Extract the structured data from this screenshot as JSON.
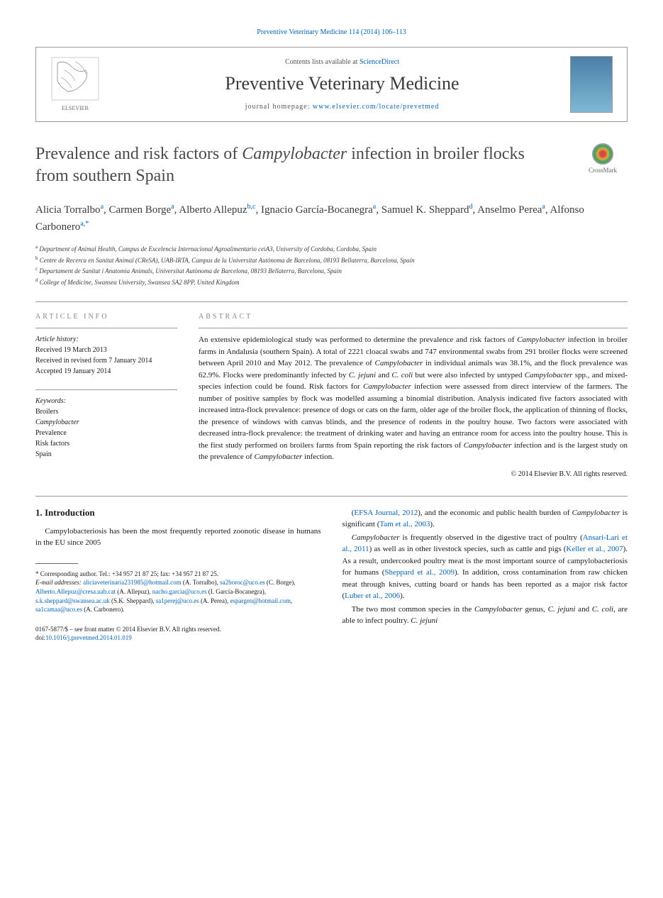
{
  "journal_ref": "Preventive Veterinary Medicine 114 (2014) 106–113",
  "header": {
    "contents_prefix": "Contents lists available at ",
    "contents_link": "ScienceDirect",
    "journal_name": "Preventive Veterinary Medicine",
    "homepage_prefix": "journal homepage: ",
    "homepage_url": "www.elsevier.com/locate/prevetmed",
    "elsevier_label": "ELSEVIER"
  },
  "title_parts": {
    "pre": "Prevalence and risk factors of ",
    "italic": "Campylobacter",
    "post": " infection in broiler flocks from southern Spain"
  },
  "crossmark_label": "CrossMark",
  "authors_html": "Alicia Torralbo|a|, Carmen Borge|a|, Alberto Allepuz|b,c|, Ignacio García-Bocanegra|a|, Samuel K. Sheppard|d|, Anselmo Perea|a|, Alfonso Carbonero|a,*|",
  "authors": [
    {
      "name": "Alicia Torralbo",
      "sup": "a"
    },
    {
      "name": "Carmen Borge",
      "sup": "a"
    },
    {
      "name": "Alberto Allepuz",
      "sup": "b,c"
    },
    {
      "name": "Ignacio García-Bocanegra",
      "sup": "a"
    },
    {
      "name": "Samuel K. Sheppard",
      "sup": "d"
    },
    {
      "name": "Anselmo Perea",
      "sup": "a"
    },
    {
      "name": "Alfonso Carbonero",
      "sup": "a,",
      "star": "*"
    }
  ],
  "affiliations": [
    {
      "sup": "a",
      "text": "Department of Animal Health, Campus de Excelencia Internacional Agroalimentario ceiA3, University of Cordoba, Cordoba, Spain"
    },
    {
      "sup": "b",
      "text": "Centre de Recerca en Sanitat Animal (CReSA), UAB-IRTA, Campus de la Universitat Autònoma de Barcelona, 08193 Bellaterra, Barcelona, Spain"
    },
    {
      "sup": "c",
      "text": "Departament de Sanitat i Anatomia Animals, Universitat Autònoma de Barcelona, 08193 Bellaterra, Barcelona, Spain"
    },
    {
      "sup": "d",
      "text": "College of Medicine, Swansea University, Swansea SA2 8PP, United Kingdom"
    }
  ],
  "info": {
    "heading": "article info",
    "history_label": "Article history:",
    "received": "Received 19 March 2013",
    "revised": "Received in revised form 7 January 2014",
    "accepted": "Accepted 19 January 2014",
    "keywords_label": "Keywords:",
    "keywords": [
      "Broilers",
      "Campylobacter",
      "Prevalence",
      "Risk factors",
      "Spain"
    ]
  },
  "abstract": {
    "heading": "abstract",
    "text": "An extensive epidemiological study was performed to determine the prevalence and risk factors of Campylobacter infection in broiler farms in Andalusia (southern Spain). A total of 2221 cloacal swabs and 747 environmental swabs from 291 broiler flocks were screened between April 2010 and May 2012. The prevalence of Campylobacter in individual animals was 38.1%, and the flock prevalence was 62.9%. Flocks were predominantly infected by C. jejuni and C. coli but were also infected by untyped Campylobacter spp., and mixed-species infection could be found. Risk factors for Campylobacter infection were assessed from direct interview of the farmers. The number of positive samples by flock was modelled assuming a binomial distribution. Analysis indicated five factors associated with increased intra-flock prevalence: presence of dogs or cats on the farm, older age of the broiler flock, the application of thinning of flocks, the presence of windows with canvas blinds, and the presence of rodents in the poultry house. Two factors were associated with decreased intra-flock prevalence: the treatment of drinking water and having an entrance room for access into the poultry house. This is the first study performed on broilers farms from Spain reporting the risk factors of Campylobacter infection and is the largest study on the prevalence of Campylobacter infection.",
    "copyright": "© 2014 Elsevier B.V. All rights reserved."
  },
  "section1": {
    "heading": "1. Introduction",
    "p1_pre": "Campylobacteriosis has been the most frequently reported zoonotic disease in humans in the EU since 2005",
    "col2_p1": "(EFSA Journal, 2012), and the economic and public health burden of Campylobacter is significant (Tam et al., 2003).",
    "col2_p2": "Campylobacter is frequently observed in the digestive tract of poultry (Ansari-Lari et al., 2011) as well as in other livestock species, such as cattle and pigs (Keller et al., 2007). As a result, undercooked poultry meat is the most important source of campylobacteriosis for humans (Sheppard et al., 2009). In addition, cross contamination from raw chicken meat through knives, cutting board or hands has been reported as a major risk factor (Luber et al., 2006).",
    "col2_p3": "The two most common species in the Campylobacter genus, C. jejuni and C. coli, are able to infect poultry. C. jejuni"
  },
  "footnotes": {
    "corr": "* Corresponding author. Tel.: +34 957 21 87 25; fax: +34 957 21 87 25.",
    "email_label": "E-mail addresses: ",
    "emails": "aliciaveterinaria231985@hotmail.com (A. Torralbo), sa2boroc@uco.es (C. Borge), Alberto.Allepuz@cresa.uab.cat (A. Allepuz), nacho.garcia@uco.es (I. García-Bocanegra), s.k.sheppard@swansea.ac.uk (S.K. Sheppard), sa1perej@uco.es (A. Perea), espargen@hotmail.com, sa1camaa@uco.es (A. Carbonero)."
  },
  "footer": {
    "line1": "0167-5877/$ – see front matter © 2014 Elsevier B.V. All rights reserved.",
    "doi_prefix": "doi:",
    "doi": "10.1016/j.prevetmed.2014.01.019"
  },
  "colors": {
    "link": "#0066cc",
    "text": "#1a1a1a",
    "muted": "#888888",
    "border": "#999999"
  }
}
